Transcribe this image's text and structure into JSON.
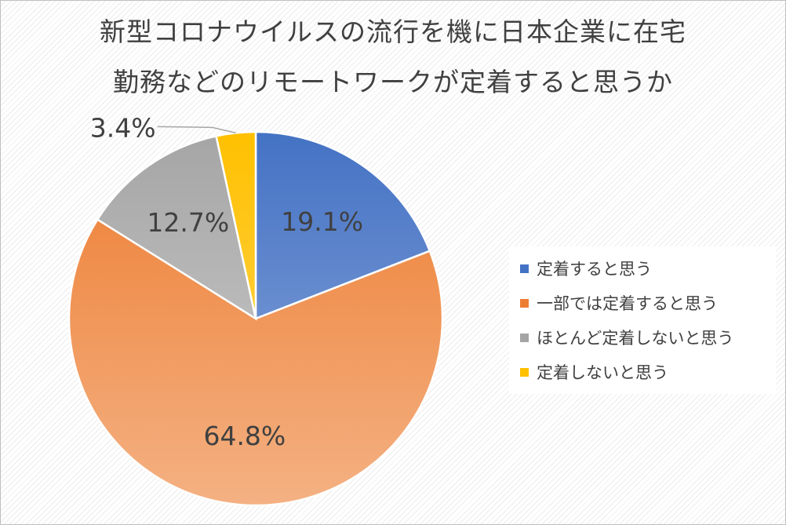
{
  "chart_data": {
    "type": "pie",
    "title_lines": [
      "新型コロナウイルスの流行を機に日本企業に在宅",
      "勤務などのリモートワークが定着すると思うか"
    ],
    "slices": [
      {
        "label": "定着すると思う",
        "value": 19.1,
        "display": "19.1%",
        "color": "#4472C4",
        "color_light": "#8FAADC"
      },
      {
        "label": "一部では定着すると思う",
        "value": 64.8,
        "display": "64.8%",
        "color": "#ED7D31",
        "color_light": "#F4B183"
      },
      {
        "label": "ほとんど定着しないと思う",
        "value": 12.7,
        "display": "12.7%",
        "color": "#A5A5A5",
        "color_light": "#D0D0D0"
      },
      {
        "label": "定着しないと思う",
        "value": 3.4,
        "display": "3.4%",
        "color": "#FFC000",
        "color_light": "#FFD966"
      }
    ],
    "legend_position": "right",
    "start_angle_deg": 0,
    "direction": "clockwise"
  }
}
